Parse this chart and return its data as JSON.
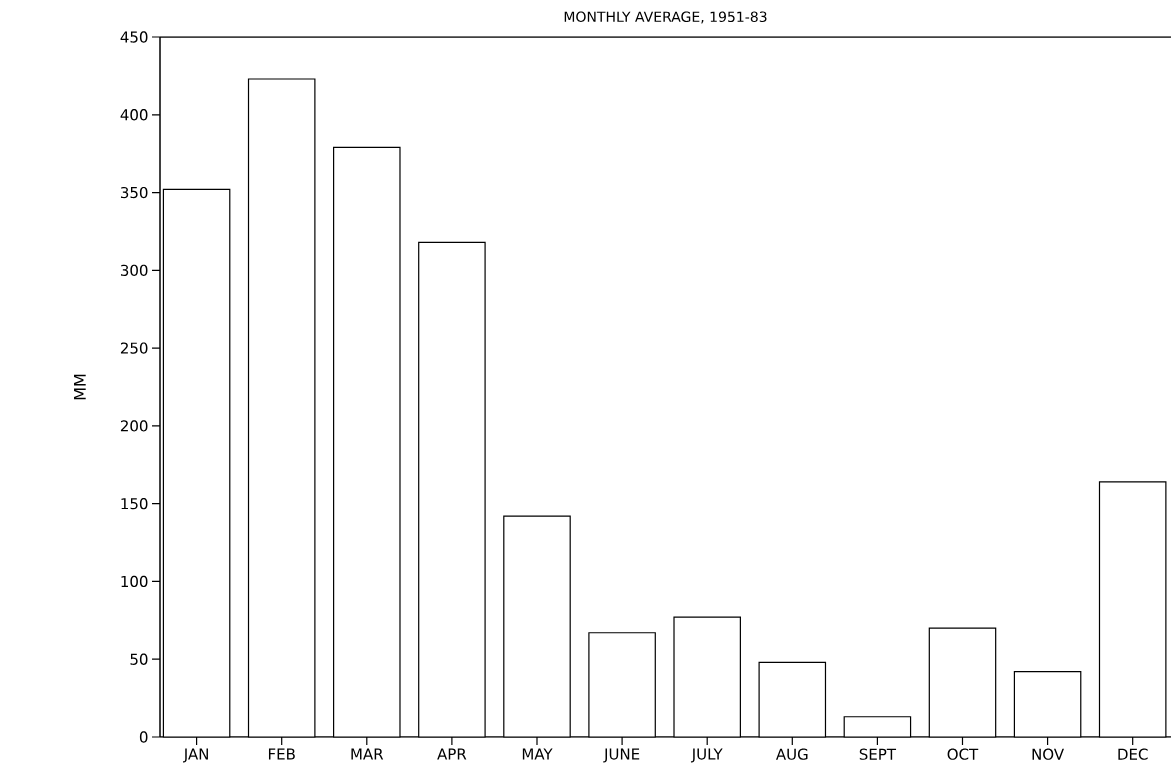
{
  "chart_data": {
    "type": "bar",
    "title": "MONTHLY AVERAGE, 1951-83",
    "ylabel": "MM",
    "categories": [
      "JAN",
      "FEB",
      "MAR",
      "APR",
      "MAY",
      "JUNE",
      "JULY",
      "AUG",
      "SEPT",
      "OCT",
      "NOV",
      "DEC"
    ],
    "values": [
      352,
      423,
      379,
      318,
      142,
      67,
      77,
      48,
      13,
      70,
      42,
      164
    ],
    "color": "#000000",
    "ylim": [
      0,
      450
    ],
    "yticks": [
      0,
      50,
      100,
      150,
      200,
      250,
      300,
      350,
      400,
      450
    ],
    "grid": false
  }
}
